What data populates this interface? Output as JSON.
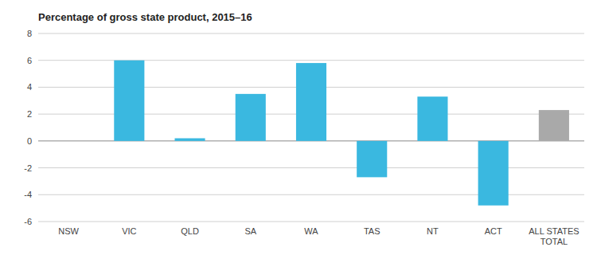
{
  "chart_data": {
    "type": "bar",
    "title": "Percentage of gross state product, 2015–16",
    "categories": [
      "NSW",
      "VIC",
      "QLD",
      "SA",
      "WA",
      "TAS",
      "NT",
      "ACT",
      "ALL STATES\nTOTAL"
    ],
    "values": [
      0.0,
      6.0,
      0.2,
      3.5,
      5.8,
      -2.7,
      3.3,
      -4.8,
      2.3
    ],
    "colors": [
      "#3ab8e0",
      "#3ab8e0",
      "#3ab8e0",
      "#3ab8e0",
      "#3ab8e0",
      "#3ab8e0",
      "#3ab8e0",
      "#3ab8e0",
      "#a9a9a9"
    ],
    "ylim": [
      -6,
      8
    ],
    "yticks": [
      -6,
      -4,
      -2,
      0,
      2,
      4,
      6,
      8
    ],
    "grid": true
  }
}
